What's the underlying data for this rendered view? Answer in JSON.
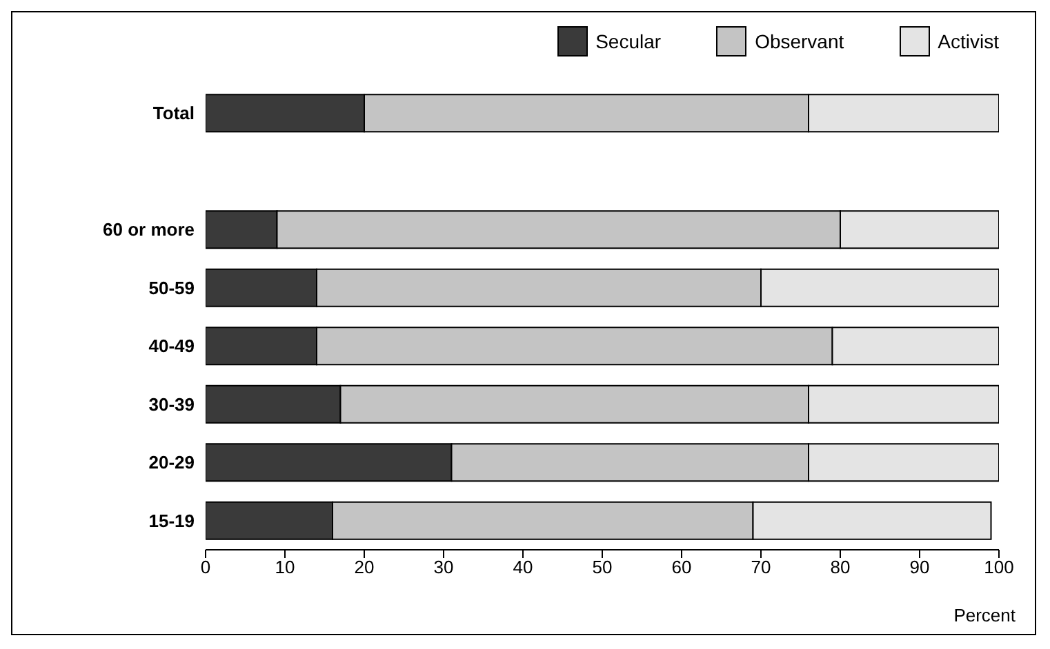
{
  "chart_data": {
    "type": "bar",
    "orientation": "horizontal",
    "stacked": true,
    "xlabel": "Percent",
    "categories": [
      "Total",
      null,
      "60 or more",
      "50-59",
      "40-49",
      "30-39",
      "20-29",
      "15-19"
    ],
    "series": [
      {
        "name": "Secular",
        "color": "#3a3a3a",
        "values": [
          20,
          null,
          9,
          14,
          14,
          17,
          31,
          16
        ]
      },
      {
        "name": "Observant",
        "color": "#c4c4c4",
        "values": [
          56,
          null,
          71,
          56,
          65,
          59,
          45,
          53
        ]
      },
      {
        "name": "Activist",
        "color": "#e4e4e4",
        "values": [
          24,
          null,
          20,
          30,
          21,
          24,
          24,
          30
        ]
      }
    ],
    "xlim": [
      0,
      100
    ],
    "xticks": [
      0,
      10,
      20,
      30,
      40,
      50,
      60,
      70,
      80,
      90,
      100
    ],
    "legend": "top right"
  }
}
